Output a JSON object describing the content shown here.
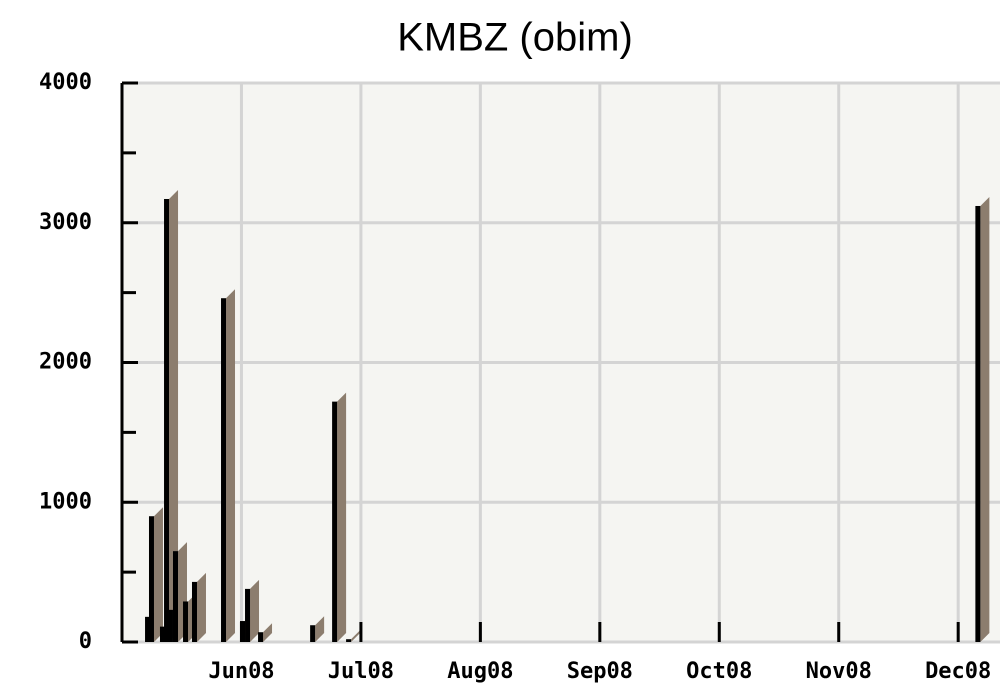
{
  "chart_data": {
    "type": "bar3d",
    "title": "KMBZ (obim)",
    "x": [
      5.218,
      5.251,
      5.343,
      5.377,
      5.41,
      5.452,
      5.536,
      5.611,
      5.854,
      6.013,
      6.055,
      6.164,
      6.6,
      6.784,
      6.901,
      12.169
    ],
    "values": [
      180,
      900,
      110,
      3170,
      230,
      650,
      290,
      430,
      2460,
      150,
      380,
      70,
      120,
      1720,
      20,
      3120
    ],
    "color": "#000000",
    "side_color": "#8c7d6e",
    "xlim": [
      5,
      12.35
    ],
    "xticks": [
      {
        "value": 6,
        "label": "Jun08"
      },
      {
        "value": 7,
        "label": "Jul08"
      },
      {
        "value": 8,
        "label": "Aug08"
      },
      {
        "value": 9,
        "label": "Sep08"
      },
      {
        "value": 10,
        "label": "Oct08"
      },
      {
        "value": 11,
        "label": "Nov08"
      },
      {
        "value": 12,
        "label": "Dec08"
      }
    ],
    "ylim": [
      0,
      4000
    ],
    "yticks": [
      0,
      1000,
      2000,
      3000,
      4000
    ],
    "yminorticks": [
      500,
      1500,
      2500,
      3500
    ],
    "grid": true
  }
}
